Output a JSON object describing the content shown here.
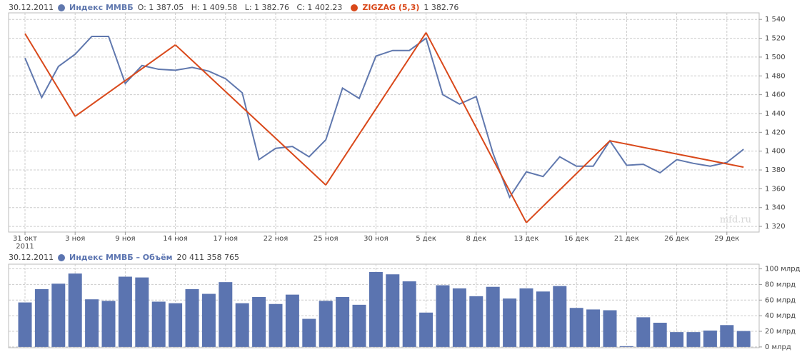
{
  "chart_data": [
    {
      "type": "line",
      "date": "30.12.2011",
      "ohlc_text": "O: 1 387.05   H: 1 409.58   L: 1 382.76   C: 1 402.23",
      "last_text": "1 382.76",
      "watermark": "mfd.ru",
      "categories": [
        "31 окт",
        null,
        null,
        "3 ноя",
        null,
        null,
        "9 ноя",
        null,
        null,
        "14 ноя",
        null,
        null,
        "17 ноя",
        null,
        null,
        "22 ноя",
        null,
        null,
        "25 ноя",
        null,
        null,
        "30 ноя",
        null,
        null,
        "5 дек",
        null,
        null,
        "8 дек",
        null,
        null,
        "13 дек",
        null,
        null,
        "16 дек",
        null,
        null,
        "21 дек",
        null,
        null,
        "26 дек",
        null,
        null,
        "29 дек",
        null
      ],
      "year_label": "2011",
      "series": [
        {
          "name": "Индекс ММВБ",
          "color": "#6078ae",
          "values": [
            1499,
            1457,
            1490,
            1503,
            1522,
            1522,
            1472,
            1491,
            1487,
            1486,
            1489,
            1485,
            1477,
            1462,
            1391,
            1403,
            1405,
            1394,
            1412,
            1467,
            1456,
            1501,
            1507,
            1507,
            1520,
            1460,
            1450,
            1458,
            1398,
            1351,
            1378,
            1373,
            1394,
            1384,
            1384,
            1411,
            1385,
            1386,
            1377,
            1391,
            1387,
            1384,
            1388,
            1402
          ]
        },
        {
          "name": "ZIGZAG (5,3)",
          "color": "#d9481a",
          "connect_nulls": true,
          "values": [
            1525,
            null,
            null,
            1437,
            null,
            null,
            null,
            null,
            null,
            1513,
            null,
            null,
            null,
            null,
            null,
            null,
            null,
            null,
            1364,
            null,
            null,
            null,
            null,
            null,
            1526,
            null,
            null,
            null,
            null,
            null,
            1324,
            null,
            null,
            null,
            null,
            1411,
            null,
            null,
            null,
            null,
            null,
            null,
            null,
            1383
          ]
        }
      ],
      "ylim": [
        1314,
        1547
      ],
      "yticks": [
        {
          "value": 1320,
          "label": "1 320"
        },
        {
          "value": 1340,
          "label": "1 340"
        },
        {
          "value": 1360,
          "label": "1 360"
        },
        {
          "value": 1380,
          "label": "1 380"
        },
        {
          "value": 1400,
          "label": "1 400"
        },
        {
          "value": 1420,
          "label": "1 420"
        },
        {
          "value": 1440,
          "label": "1 440"
        },
        {
          "value": 1460,
          "label": "1 460"
        },
        {
          "value": 1480,
          "label": "1 480"
        },
        {
          "value": 1500,
          "label": "1 500"
        },
        {
          "value": 1520,
          "label": "1 520"
        },
        {
          "value": 1540,
          "label": "1 540"
        }
      ],
      "grid": true
    },
    {
      "type": "bar",
      "date": "30.12.2011",
      "total_text": "20 411 358 765",
      "series": [
        {
          "name": "Индекс ММВБ – Объём",
          "color": "#5b74b0",
          "values": [
            57,
            74,
            81,
            94,
            61,
            59,
            90,
            89,
            58,
            56,
            74,
            68,
            83,
            56,
            64,
            55,
            67,
            36,
            59,
            64,
            54,
            96,
            93,
            84,
            44,
            79,
            75,
            65,
            77,
            62,
            75,
            71,
            78,
            50,
            48,
            47,
            1,
            38,
            31,
            19,
            19,
            21,
            28,
            20.4
          ]
        }
      ],
      "ylim": [
        -1,
        106
      ],
      "yticks": [
        {
          "value": 0,
          "label": "0 млрд"
        },
        {
          "value": 20,
          "label": "20 млрд"
        },
        {
          "value": 40,
          "label": "40 млрд"
        },
        {
          "value": 60,
          "label": "60 млрд"
        },
        {
          "value": 80,
          "label": "80 млрд"
        },
        {
          "value": 100,
          "label": "100 млрд"
        }
      ],
      "grid": true
    }
  ]
}
